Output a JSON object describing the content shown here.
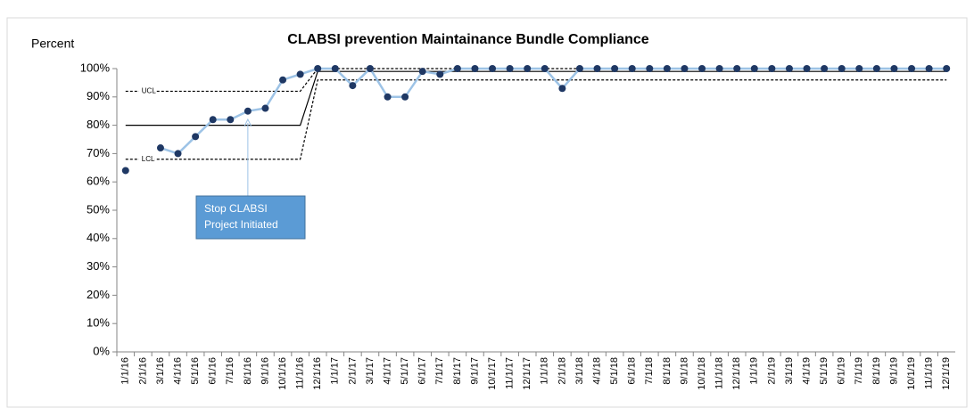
{
  "chart_data": {
    "type": "line",
    "title": "CLABSI prevention Maintainance Bundle Compliance",
    "y_label": "Percent",
    "categories": [
      "1/1/16",
      "2/1/16",
      "3/1/16",
      "4/1/16",
      "5/1/16",
      "6/1/16",
      "7/1/16",
      "8/1/16",
      "9/1/16",
      "10/1/16",
      "11/1/16",
      "12/1/16",
      "1/1/17",
      "2/1/17",
      "3/1/17",
      "4/1/17",
      "5/1/17",
      "6/1/17",
      "7/1/17",
      "8/1/17",
      "9/1/17",
      "10/1/17",
      "11/1/17",
      "12/1/17",
      "1/1/18",
      "2/1/18",
      "3/1/18",
      "4/1/18",
      "5/1/18",
      "6/1/18",
      "7/1/18",
      "8/1/18",
      "9/1/18",
      "10/1/18",
      "11/1/18",
      "12/1/18",
      "1/1/19",
      "2/1/19",
      "3/1/19",
      "4/1/19",
      "5/1/19",
      "6/1/19",
      "7/1/19",
      "8/1/19",
      "9/1/19",
      "10/1/19",
      "11/1/19",
      "12/1/19"
    ],
    "series": [
      {
        "color": "#000000",
        "dash": false,
        "markers": false,
        "values": [
          80,
          80,
          80,
          80,
          80,
          80,
          80,
          80,
          80,
          80,
          80,
          99,
          99,
          99,
          99,
          99,
          99,
          99,
          99,
          99,
          99,
          99,
          99,
          99,
          99,
          99,
          99,
          99,
          99,
          99,
          99,
          99,
          99,
          99,
          99,
          99,
          99,
          99,
          99,
          99,
          99,
          99,
          99,
          99,
          99,
          99,
          99,
          99
        ]
      },
      {
        "line_label": "UCL",
        "color": "#000000",
        "dash": true,
        "markers": false,
        "values": [
          92,
          92,
          92,
          92,
          92,
          92,
          92,
          92,
          92,
          92,
          92,
          100,
          100,
          100,
          100,
          100,
          100,
          100,
          100,
          100,
          100,
          100,
          100,
          100,
          100,
          100,
          100,
          100,
          100,
          100,
          100,
          100,
          100,
          100,
          100,
          100,
          100,
          100,
          100,
          100,
          100,
          100,
          100,
          100,
          100,
          100,
          100,
          100
        ]
      },
      {
        "line_label": "LCL",
        "color": "#000000",
        "dash": true,
        "markers": false,
        "values": [
          68,
          68,
          68,
          68,
          68,
          68,
          68,
          68,
          68,
          68,
          68,
          96,
          96,
          96,
          96,
          96,
          96,
          96,
          96,
          96,
          96,
          96,
          96,
          96,
          96,
          96,
          96,
          96,
          96,
          96,
          96,
          96,
          96,
          96,
          96,
          96,
          96,
          96,
          96,
          96,
          96,
          96,
          96,
          96,
          96,
          96,
          96,
          96
        ]
      },
      {
        "color": "#9dc3e6",
        "marker_color": "#1f3864",
        "dash": false,
        "markers": true,
        "values": [
          64,
          null,
          72,
          70,
          76,
          82,
          82,
          85,
          86,
          96,
          98,
          100,
          100,
          94,
          100,
          90,
          90,
          99,
          98,
          100,
          100,
          100,
          100,
          100,
          100,
          93,
          100,
          100,
          100,
          100,
          100,
          100,
          100,
          100,
          100,
          100,
          100,
          100,
          100,
          100,
          100,
          100,
          100,
          100,
          100,
          100,
          100,
          100
        ]
      }
    ],
    "ylim": [
      0,
      100
    ],
    "yticks": [
      {
        "value": 0,
        "label": "0%"
      },
      {
        "value": 10,
        "label": "10%"
      },
      {
        "value": 20,
        "label": "20%"
      },
      {
        "value": 30,
        "label": "30%"
      },
      {
        "value": 40,
        "label": "40%"
      },
      {
        "value": 50,
        "label": "50%"
      },
      {
        "value": 60,
        "label": "60%"
      },
      {
        "value": 70,
        "label": "70%"
      },
      {
        "value": 80,
        "label": "80%"
      },
      {
        "value": 90,
        "label": "90%"
      },
      {
        "value": 100,
        "label": "100%"
      }
    ],
    "annotation": {
      "lines": [
        "Stop CLABSI",
        "Project Initiated"
      ],
      "category_index": 7
    }
  }
}
